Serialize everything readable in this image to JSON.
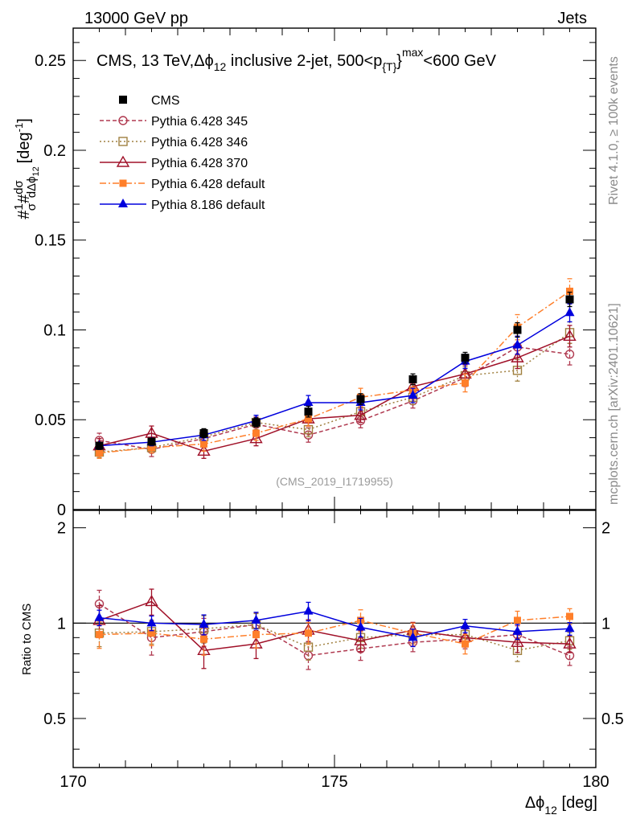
{
  "header": {
    "left": "13000 GeV pp",
    "right": "Jets"
  },
  "side_labels": {
    "rivet": "Rivet 4.1.0, ≥ 100k events",
    "mcplots": "mcplots.cern.ch [arXiv:2401.10621]"
  },
  "chart_data": {
    "type": "line",
    "title": "CMS, 13 TeV,Δϕ₁₂ inclusive 2-jet, 500<p_T^max<600 GeV",
    "title_parts": {
      "a": "CMS, 13 TeV,",
      "b": "Δϕ",
      "b_sub": "12",
      "c": " inclusive 2-jet, 500<p",
      "c_sub": "{T}",
      "c_sup": "}",
      "c_sup2": "max",
      "d": "<600 GeV"
    },
    "watermark": "(CMS_2019_I1719955)",
    "xlabel": {
      "main": "Δϕ",
      "sub": "12",
      "unit": " [deg]"
    },
    "ylabel": {
      "prefix": "#",
      "frac1_num": "1",
      "frac1_den": "σ",
      "mid": "#",
      "frac2_num": "dσ",
      "frac2_den": "dΔϕ",
      "frac2_den_sub": "12",
      "unit": "[deg",
      "unit_sup": "-1",
      "unit_close": "]"
    },
    "ratio_ylabel": "Ratio to CMS",
    "xlim": [
      170,
      180
    ],
    "ylim": [
      0,
      0.268
    ],
    "ratio_ylim": [
      0.35,
      2.27
    ],
    "x_ticks": [
      "170",
      "175",
      "180"
    ],
    "y_ticks": [
      "0",
      "0.05",
      "0.1",
      "0.15",
      "0.2",
      "0.25"
    ],
    "ratio_ticks": [
      "0.5",
      "1",
      "2"
    ],
    "x": [
      170.5,
      171.5,
      172.5,
      173.5,
      174.5,
      175.5,
      176.5,
      177.5,
      178.5,
      179.5
    ],
    "series": [
      {
        "name": "CMS",
        "color": "#000000",
        "style": "data",
        "values": [
          0.0355,
          0.0378,
          0.0425,
          0.0485,
          0.0545,
          0.0615,
          0.0725,
          0.0845,
          0.1,
          0.117
        ],
        "errors": [
          0.002,
          0.002,
          0.0025,
          0.0025,
          0.003,
          0.003,
          0.003,
          0.003,
          0.004,
          0.004
        ],
        "ratio": [
          1,
          1,
          1,
          1,
          1,
          1,
          1,
          1,
          1,
          1
        ]
      },
      {
        "name": "Pythia 6.428 345",
        "color": "#b03a50",
        "style": "dashed-circle",
        "values": [
          0.0385,
          0.0335,
          0.0395,
          0.0475,
          0.0415,
          0.0495,
          0.0605,
          0.0735,
          0.0905,
          0.0865
        ],
        "errors": [
          0.004,
          0.004,
          0.004,
          0.004,
          0.004,
          0.004,
          0.004,
          0.005,
          0.006,
          0.006
        ],
        "ratio": [
          1.15,
          0.9,
          0.94,
          0.99,
          0.79,
          0.83,
          0.87,
          0.89,
          0.92,
          0.79
        ]
      },
      {
        "name": "Pythia 6.428 346",
        "color": "#a08040",
        "style": "dotted-square",
        "values": [
          0.032,
          0.0345,
          0.0405,
          0.0485,
          0.0445,
          0.0545,
          0.0625,
          0.0745,
          0.0775,
          0.0985
        ],
        "errors": [
          0.003,
          0.003,
          0.004,
          0.004,
          0.004,
          0.004,
          0.004,
          0.005,
          0.006,
          0.006
        ],
        "ratio": [
          0.93,
          0.94,
          0.96,
          0.99,
          0.84,
          0.9,
          0.92,
          0.92,
          0.82,
          0.88
        ]
      },
      {
        "name": "Pythia 6.428 370",
        "color": "#a01028",
        "style": "solid-triangle-open",
        "values": [
          0.0355,
          0.0425,
          0.0325,
          0.0395,
          0.0505,
          0.0525,
          0.0685,
          0.0755,
          0.0845,
          0.0965
        ],
        "errors": [
          0.004,
          0.004,
          0.004,
          0.004,
          0.004,
          0.004,
          0.004,
          0.005,
          0.006,
          0.006
        ],
        "ratio": [
          1.02,
          1.17,
          0.82,
          0.86,
          0.95,
          0.88,
          0.95,
          0.9,
          0.87,
          0.86
        ]
      },
      {
        "name": "Pythia 6.428 default",
        "color": "#ff7f2a",
        "style": "dashdot-square-filled",
        "values": [
          0.0315,
          0.0345,
          0.0365,
          0.0425,
          0.0505,
          0.0625,
          0.0665,
          0.0705,
          0.1015,
          0.1215
        ],
        "errors": [
          0.003,
          0.003,
          0.004,
          0.004,
          0.004,
          0.005,
          0.005,
          0.005,
          0.007,
          0.007
        ],
        "ratio": [
          0.92,
          0.93,
          0.89,
          0.92,
          0.93,
          1.02,
          0.93,
          0.86,
          1.02,
          1.05
        ]
      },
      {
        "name": "Pythia 8.186 default",
        "color": "#0000dd",
        "style": "solid-triangle-filled",
        "values": [
          0.0355,
          0.0375,
          0.0415,
          0.0495,
          0.0595,
          0.0595,
          0.0635,
          0.0825,
          0.0915,
          0.1095
        ],
        "errors": [
          0.002,
          0.002,
          0.003,
          0.003,
          0.004,
          0.004,
          0.004,
          0.004,
          0.005,
          0.005
        ],
        "ratio": [
          1.04,
          1.0,
          0.99,
          1.02,
          1.09,
          0.97,
          0.9,
          0.98,
          0.94,
          0.96
        ]
      }
    ]
  }
}
